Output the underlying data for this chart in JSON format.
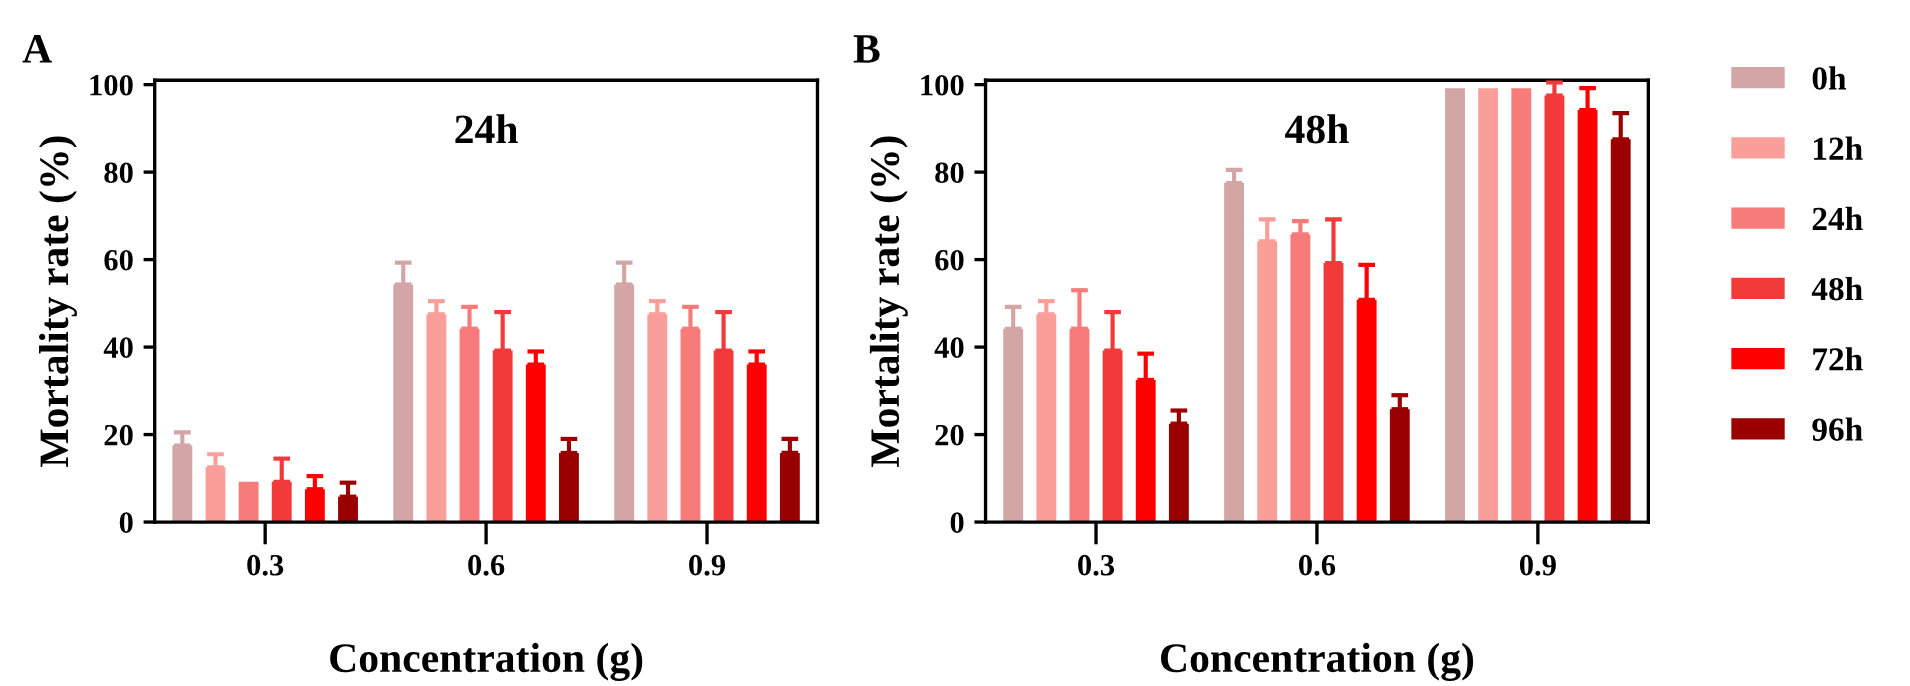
{
  "chart_data": [
    {
      "type": "bar",
      "title": "24h",
      "xlabel": "Concentration (g)",
      "ylabel": "Mortality rate (%)",
      "annotations": [
        "A"
      ],
      "categories": [
        "0.3",
        "0.6",
        "0.9"
      ],
      "ylim": [
        0,
        101
      ],
      "yticks": [
        0,
        20,
        40,
        60,
        80,
        100
      ],
      "grid": false,
      "legend": false,
      "series": [
        {
          "color": "#d4a5a5",
          "values": [
            17.5,
            54.3,
            54.3
          ],
          "errors": [
            [
              17.5,
              20.5
            ],
            [
              54.3,
              59.3
            ],
            [
              54.3,
              59.3
            ]
          ]
        },
        {
          "color": "#fa9e9a",
          "values": [
            12.5,
            47.5,
            47.5
          ],
          "errors": [
            [
              12.5,
              15.5
            ],
            [
              47.5,
              50.5
            ],
            [
              47.5,
              50.5
            ]
          ]
        },
        {
          "color": "#f77b7b",
          "values": [
            9.2,
            44.2,
            44.2
          ],
          "errors": [
            null,
            [
              44.2,
              49.2
            ],
            [
              44.2,
              49.2
            ]
          ]
        },
        {
          "color": "#f23a3a",
          "values": [
            9.2,
            39.2,
            39.2
          ],
          "errors": [
            [
              9.2,
              14.5
            ],
            [
              39.2,
              48
            ],
            [
              39.2,
              48
            ]
          ]
        },
        {
          "color": "#ff0000",
          "values": [
            7.5,
            36,
            36
          ],
          "errors": [
            [
              7.5,
              10.5
            ],
            [
              36,
              39
            ],
            [
              36,
              39
            ]
          ]
        },
        {
          "color": "#9b0000",
          "values": [
            5.8,
            15.8,
            15.8
          ],
          "errors": [
            [
              5.8,
              9
            ],
            [
              15.8,
              19
            ],
            [
              15.8,
              19
            ]
          ]
        }
      ]
    },
    {
      "type": "bar",
      "title": "48h",
      "xlabel": "Concentration (g)",
      "ylabel": "Mortality rate (%)",
      "annotations": [
        "B"
      ],
      "categories": [
        "0.3",
        "0.6",
        "0.9"
      ],
      "ylim": [
        0,
        101
      ],
      "yticks": [
        0,
        20,
        40,
        60,
        80,
        100
      ],
      "grid": false,
      "legend": "right",
      "series": [
        {
          "name": "0h",
          "color": "#d4a5a5",
          "values": [
            44.2,
            77.5,
            99.2
          ],
          "errors": [
            [
              44.2,
              49.2
            ],
            [
              77.5,
              80.5
            ],
            null
          ]
        },
        {
          "name": "12h",
          "color": "#fa9e9a",
          "values": [
            47.5,
            64.2,
            99.2
          ],
          "errors": [
            [
              47.5,
              50.5
            ],
            [
              64.2,
              69.2
            ],
            null
          ]
        },
        {
          "name": "24h",
          "color": "#f77b7b",
          "values": [
            44.2,
            65.8,
            99.2
          ],
          "errors": [
            [
              44.2,
              53
            ],
            [
              65.8,
              68.8
            ],
            null
          ]
        },
        {
          "name": "48h",
          "color": "#f23a3a",
          "values": [
            39.2,
            59.2,
            97.5
          ],
          "errors": [
            [
              39.2,
              48
            ],
            [
              59.2,
              69.2
            ],
            [
              97.5,
              100.5
            ]
          ]
        },
        {
          "name": "72h",
          "color": "#ff0000",
          "values": [
            32.5,
            50.8,
            94.2
          ],
          "errors": [
            [
              32.5,
              38.5
            ],
            [
              50.8,
              58.8
            ],
            [
              94.2,
              99.2
            ]
          ]
        },
        {
          "name": "96h",
          "color": "#9b0000",
          "values": [
            22.5,
            25.8,
            87.5
          ],
          "errors": [
            [
              22.5,
              25.5
            ],
            [
              25.8,
              29
            ],
            [
              87.5,
              93.5
            ]
          ]
        }
      ]
    }
  ]
}
